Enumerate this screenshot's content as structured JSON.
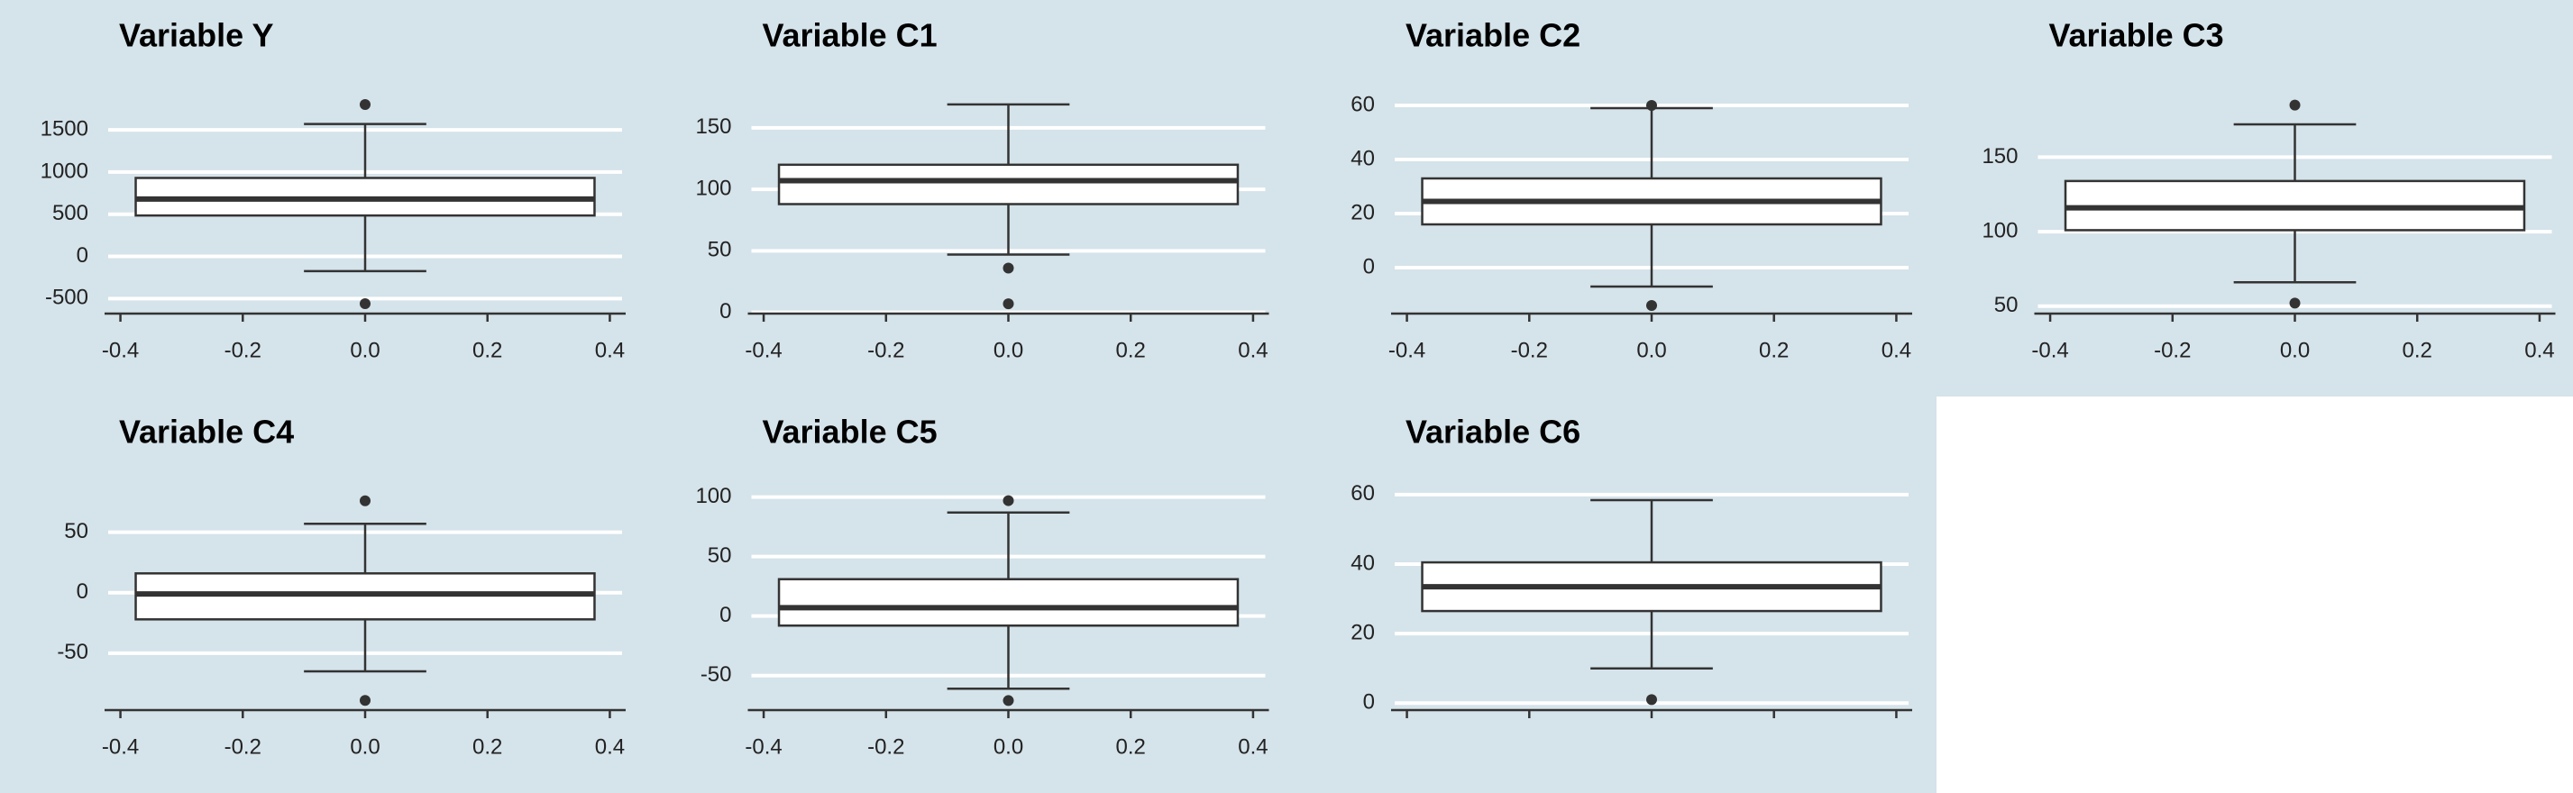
{
  "chart_data": [
    {
      "type": "box",
      "title": "Variable Y",
      "stats": {
        "whisker_low": -175,
        "q1": 485,
        "median": 680,
        "q3": 930,
        "whisker_high": 1570
      },
      "outliers": [
        1800,
        -560
      ],
      "xlim": [
        -0.42,
        0.42
      ],
      "xticks": [
        -0.4,
        -0.2,
        {
          "value": 0,
          "label": "0.0"
        },
        0.2,
        0.4
      ],
      "ylim": [
        -678,
        1918
      ],
      "yticks": [
        -500,
        0,
        500,
        1000,
        1500
      ],
      "grid": true,
      "show_xtick_labels": true
    },
    {
      "type": "box",
      "title": "Variable C1",
      "stats": {
        "whisker_low": 47,
        "q1": 88,
        "median": 107,
        "q3": 120,
        "whisker_high": 169
      },
      "outliers": [
        36,
        7
      ],
      "xlim": [
        -0.42,
        0.42
      ],
      "xticks": [
        -0.4,
        -0.2,
        {
          "value": 0,
          "label": "0.0"
        },
        0.2,
        0.4
      ],
      "ylim": [
        -1,
        177
      ],
      "yticks": [
        0,
        50,
        100,
        150
      ],
      "grid": true,
      "show_xtick_labels": true
    },
    {
      "type": "box",
      "title": "Variable C2",
      "stats": {
        "whisker_low": -7,
        "q1": 16,
        "median": 24.5,
        "q3": 33,
        "whisker_high": 59
      },
      "outliers": [
        60,
        -14
      ],
      "xlim": [
        -0.42,
        0.42
      ],
      "xticks": [
        -0.4,
        -0.2,
        {
          "value": 0,
          "label": "0.0"
        },
        0.2,
        0.4
      ],
      "ylim": [
        -17,
        64
      ],
      "yticks": [
        0,
        20,
        40,
        60
      ],
      "grid": true,
      "show_xtick_labels": true
    },
    {
      "type": "box",
      "title": "Variable C3",
      "stats": {
        "whisker_low": 66,
        "q1": 101,
        "median": 116,
        "q3": 134,
        "whisker_high": 172
      },
      "outliers": [
        185,
        52
      ],
      "xlim": [
        -0.42,
        0.42
      ],
      "xticks": [
        -0.4,
        -0.2,
        {
          "value": 0,
          "label": "0.0"
        },
        0.2,
        0.4
      ],
      "ylim": [
        45,
        192
      ],
      "yticks": [
        50,
        100,
        150
      ],
      "grid": true,
      "show_xtick_labels": true
    },
    {
      "type": "box",
      "title": "Variable C4",
      "stats": {
        "whisker_low": -65,
        "q1": -22,
        "median": -1,
        "q3": 16,
        "whisker_high": 57
      },
      "outliers": [
        76,
        -89
      ],
      "xlim": [
        -0.42,
        0.42
      ],
      "xticks": [
        -0.4,
        -0.2,
        {
          "value": 0,
          "label": "0.0"
        },
        0.2,
        0.4
      ],
      "ylim": [
        -97,
        84
      ],
      "yticks": [
        -50,
        0,
        50
      ],
      "grid": true,
      "show_xtick_labels": true
    },
    {
      "type": "box",
      "title": "Variable C5",
      "stats": {
        "whisker_low": -61,
        "q1": -8,
        "median": 7,
        "q3": 31,
        "whisker_high": 87
      },
      "outliers": [
        97,
        -71
      ],
      "xlim": [
        -0.42,
        0.42
      ],
      "xticks": [
        -0.4,
        -0.2,
        {
          "value": 0,
          "label": "0.0"
        },
        0.2,
        0.4
      ],
      "ylim": [
        -79,
        105
      ],
      "yticks": [
        -50,
        0,
        50,
        100
      ],
      "grid": true,
      "show_xtick_labels": true
    },
    {
      "type": "box",
      "title": "Variable C6",
      "stats": {
        "whisker_low": 10,
        "q1": 26.5,
        "median": 33.5,
        "q3": 40.5,
        "whisker_high": 58.4
      },
      "outliers": [
        1
      ],
      "xlim": [
        -0.42,
        0.42
      ],
      "xticks": [
        -0.4,
        -0.2,
        {
          "value": 0,
          "label": "0.0"
        },
        0.2,
        0.4
      ],
      "ylim": [
        -2,
        61
      ],
      "yticks": [
        0,
        20,
        40,
        60
      ],
      "grid": true,
      "show_xtick_labels": false
    }
  ]
}
